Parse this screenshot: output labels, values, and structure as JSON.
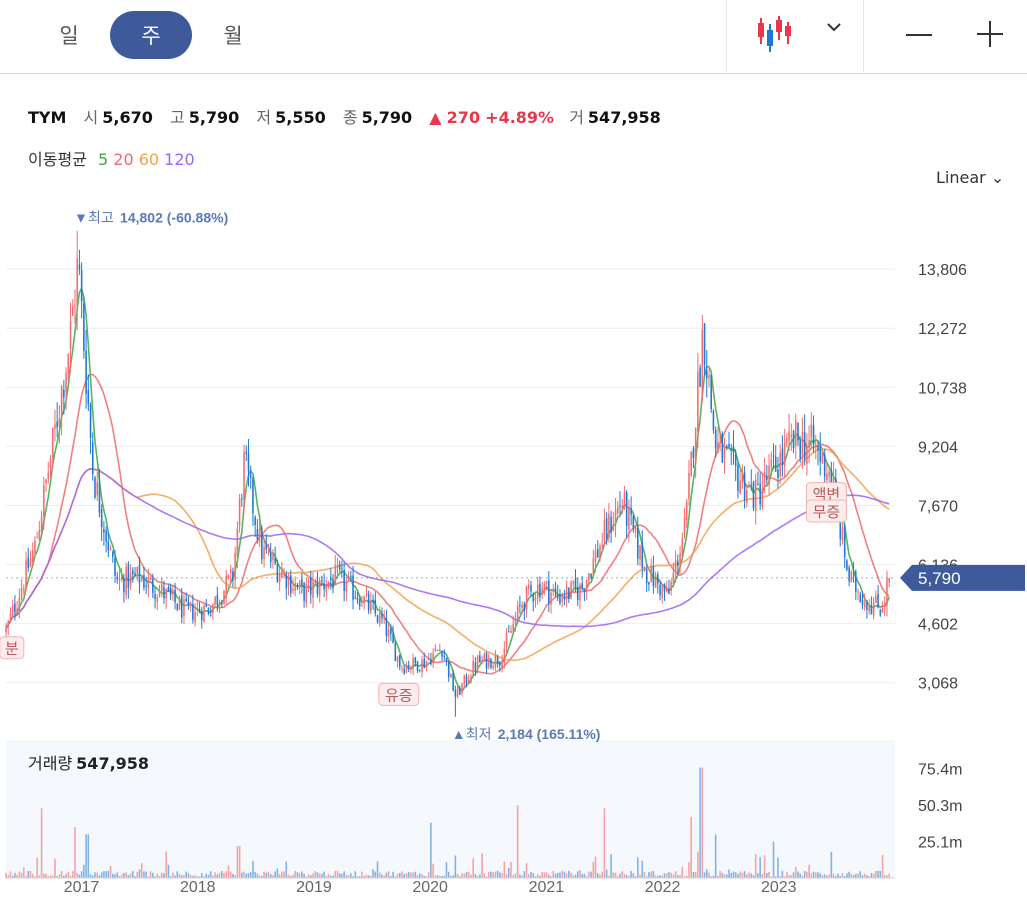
{
  "toolbar": {
    "period_tabs": [
      "일",
      "주",
      "월"
    ],
    "active_tab": "주",
    "chart_type_icon": "candlestick-icon",
    "dropdown_icon": "chevron-down-icon",
    "zoom_out_icon": "minus-icon",
    "zoom_in_icon": "plus-icon"
  },
  "quote": {
    "symbol": "TYM",
    "open_label": "시",
    "open": "5,670",
    "high_label": "고",
    "high": "5,790",
    "low_label": "저",
    "low": "5,550",
    "close_label": "종",
    "close": "5,790",
    "change": "270",
    "change_pct": "+4.89%",
    "volume_label": "거",
    "volume": "547,958"
  },
  "ma_legend": {
    "label": "이동평균",
    "periods": [
      {
        "name": "5",
        "color": "#3aa845"
      },
      {
        "name": "20",
        "color": "#f06a6a"
      },
      {
        "name": "60",
        "color": "#f5a04a"
      },
      {
        "name": "120",
        "color": "#a062f0"
      }
    ]
  },
  "scale_mode": "Linear",
  "colors": {
    "up": "#f26d6d",
    "down": "#1f78d4",
    "accent": "#3e5a9a"
  },
  "chart_data": {
    "type": "candlestick",
    "price_axis": {
      "ticks": [
        "13,806",
        "12,272",
        "10,738",
        "9,204",
        "7,670",
        "6,136",
        "4,602",
        "3,068"
      ],
      "tick_values": [
        13806,
        12272,
        10738,
        9204,
        7670,
        6136,
        4602,
        3068
      ],
      "ylim": [
        2100,
        15600
      ]
    },
    "x_labels": [
      "2017",
      "2018",
      "2019",
      "2020",
      "2021",
      "2022",
      "2023"
    ],
    "x_range": [
      2016.35,
      2024.0
    ],
    "current_price": "5,790",
    "current_value": 5790,
    "max_marker": {
      "text": "최고",
      "value": "14,802 (-60.88%)",
      "price": 14802,
      "x": 2016.97
    },
    "min_marker": {
      "text": "최저",
      "value": "2,184 (165.11%)",
      "price": 2184,
      "x": 2020.22
    },
    "events": [
      {
        "text": "분",
        "x": 2016.4,
        "price": 3950
      },
      {
        "text": "유증",
        "x": 2019.73,
        "price": 2740
      },
      {
        "text": "액변",
        "x": 2023.41,
        "price": 7950
      },
      {
        "text": "무증",
        "x": 2023.41,
        "price": 7500
      }
    ],
    "price_path": [
      [
        2016.35,
        4400
      ],
      [
        2016.6,
        6600
      ],
      [
        2016.75,
        9200
      ],
      [
        2016.9,
        12000
      ],
      [
        2016.97,
        14000
      ],
      [
        2017.1,
        8500
      ],
      [
        2017.3,
        5700
      ],
      [
        2017.5,
        5800
      ],
      [
        2017.7,
        5400
      ],
      [
        2017.9,
        4900
      ],
      [
        2018.1,
        5000
      ],
      [
        2018.3,
        5800
      ],
      [
        2018.4,
        8800
      ],
      [
        2018.55,
        6500
      ],
      [
        2018.7,
        6000
      ],
      [
        2018.9,
        5400
      ],
      [
        2019.05,
        5600
      ],
      [
        2019.2,
        5800
      ],
      [
        2019.4,
        5300
      ],
      [
        2019.6,
        4600
      ],
      [
        2019.75,
        3500
      ],
      [
        2019.95,
        3600
      ],
      [
        2020.1,
        4000
      ],
      [
        2020.22,
        2700
      ],
      [
        2020.4,
        3600
      ],
      [
        2020.6,
        3700
      ],
      [
        2020.8,
        5200
      ],
      [
        2020.95,
        5600
      ],
      [
        2021.1,
        5300
      ],
      [
        2021.3,
        5500
      ],
      [
        2021.5,
        6900
      ],
      [
        2021.65,
        7800
      ],
      [
        2021.85,
        6000
      ],
      [
        2022.05,
        5300
      ],
      [
        2022.2,
        7200
      ],
      [
        2022.35,
        12300
      ],
      [
        2022.45,
        9300
      ],
      [
        2022.6,
        8600
      ],
      [
        2022.8,
        7900
      ],
      [
        2023.0,
        8800
      ],
      [
        2023.15,
        9400
      ],
      [
        2023.3,
        9200
      ],
      [
        2023.45,
        8500
      ],
      [
        2023.6,
        5800
      ],
      [
        2023.75,
        5200
      ],
      [
        2023.88,
        5000
      ],
      [
        2023.95,
        5790
      ]
    ],
    "volume": {
      "label": "거래량",
      "value": "547,958",
      "ticks": [
        "75.4m",
        "50.3m",
        "25.1m"
      ],
      "tick_values": [
        75.4,
        50.3,
        25.1
      ],
      "ymax": 95,
      "spikes": [
        [
          2016.65,
          48
        ],
        [
          2016.95,
          35
        ],
        [
          2017.05,
          30
        ],
        [
          2018.35,
          22
        ],
        [
          2020.0,
          38
        ],
        [
          2020.75,
          50
        ],
        [
          2021.5,
          48
        ],
        [
          2022.25,
          42
        ],
        [
          2022.33,
          76
        ],
        [
          2022.45,
          30
        ],
        [
          2022.95,
          25
        ],
        [
          2023.45,
          18
        ]
      ]
    }
  }
}
